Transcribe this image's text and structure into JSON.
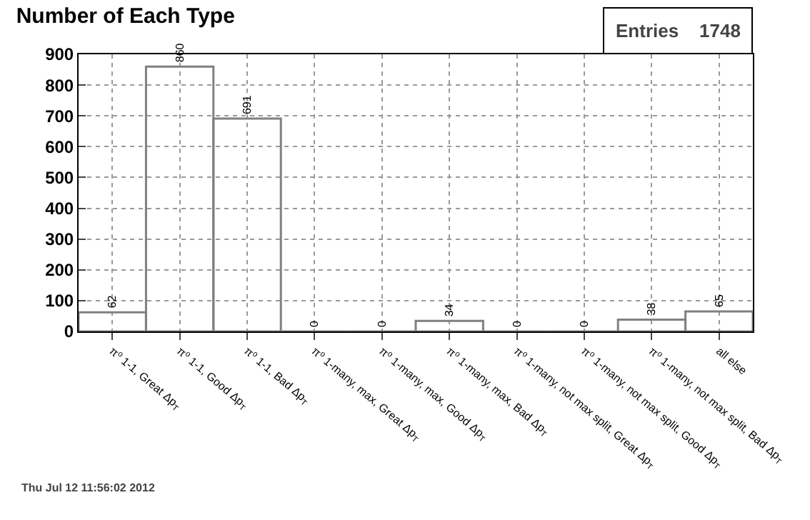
{
  "chart_data": {
    "type": "bar",
    "title": "Number of Each Type",
    "categories": [
      "π⁰ 1-1, Great Δp$_{T}$",
      "π⁰ 1-1, Good Δp$_{T}$",
      "π⁰ 1-1, Bad Δp$_{T}$",
      "π⁰ 1-many, max, Great Δp$_{T}$",
      "π⁰ 1-many, max, Good Δp$_{T}$",
      "π⁰ 1-many, max, Bad Δp$_{T}$",
      "π⁰ 1-many, not max split, Great Δp$_{T}$",
      "π⁰ 1-many, not max split, Good Δp$_{T}$",
      "π⁰ 1-many, not max split, Bad Δp$_{T}$",
      "all else"
    ],
    "values": [
      62,
      860,
      691,
      0,
      0,
      34,
      0,
      0,
      38,
      65
    ],
    "color": "#808080",
    "ylim": [
      0,
      900
    ],
    "yticks": [
      0,
      100,
      200,
      300,
      400,
      500,
      600,
      700,
      800,
      900
    ],
    "grid": true,
    "data_labels": true,
    "annotations": [
      "Entries    1748",
      "Thu Jul 12 11:56:02 2012"
    ]
  }
}
